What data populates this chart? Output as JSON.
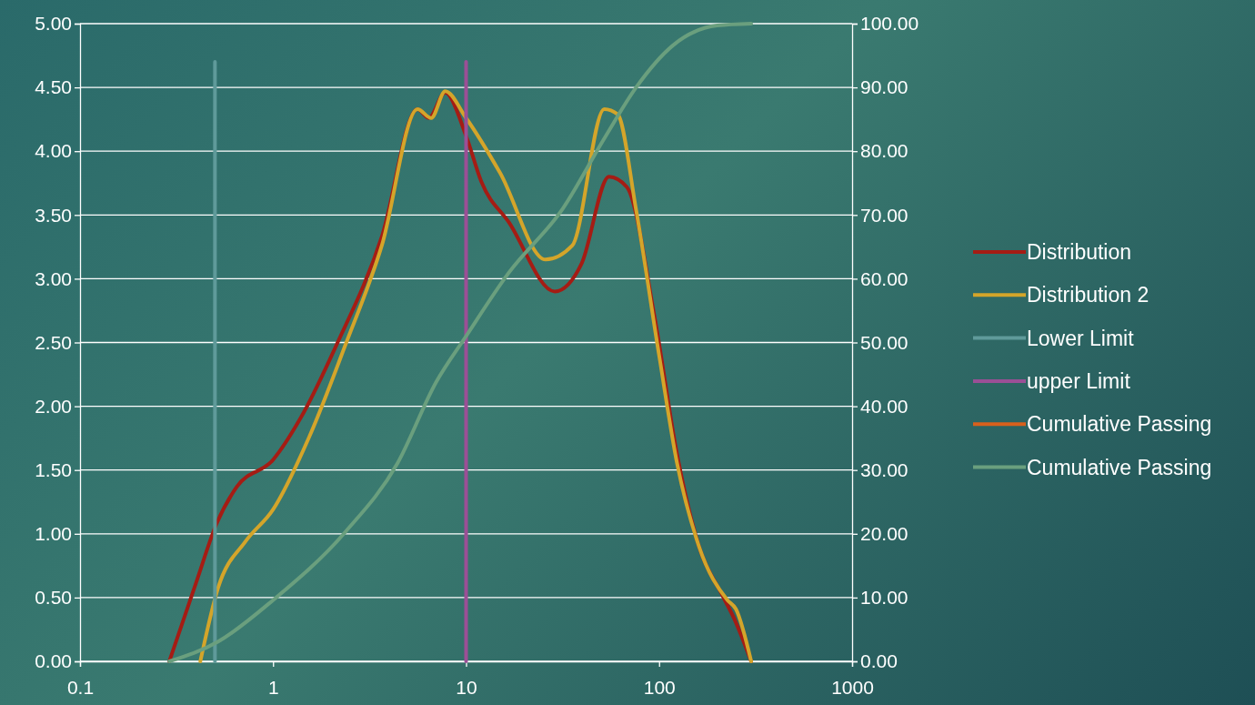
{
  "chart_data": {
    "type": "line",
    "log": "x",
    "grid": "y",
    "legend": "right",
    "marker": "none",
    "xlim": [
      0.1,
      1000
    ],
    "xticks": [
      0.1,
      1,
      10,
      100,
      1000
    ],
    "ylim": [
      0,
      5
    ],
    "yticks": [
      {
        "value": 0,
        "label": "0.00"
      },
      {
        "value": 0.5,
        "label": "0.50"
      },
      {
        "value": 1,
        "label": "1.00"
      },
      {
        "value": 1.5,
        "label": "1.50"
      },
      {
        "value": 2,
        "label": "2.00"
      },
      {
        "value": 2.5,
        "label": "2.50"
      },
      {
        "value": 3,
        "label": "3.00"
      },
      {
        "value": 3.5,
        "label": "3.50"
      },
      {
        "value": 4,
        "label": "4.00"
      },
      {
        "value": 4.5,
        "label": "4.50"
      },
      {
        "value": 5,
        "label": "5.00"
      }
    ],
    "y2lim": [
      0,
      100
    ],
    "y2ticks": [
      {
        "value": 0,
        "label": "0.00"
      },
      {
        "value": 10,
        "label": "10.00"
      },
      {
        "value": 20,
        "label": "20.00"
      },
      {
        "value": 30,
        "label": "30.00"
      },
      {
        "value": 40,
        "label": "40.00"
      },
      {
        "value": 50,
        "label": "50.00"
      },
      {
        "value": 60,
        "label": "60.00"
      },
      {
        "value": 70,
        "label": "70.00"
      },
      {
        "value": 80,
        "label": "80.00"
      },
      {
        "value": 90,
        "label": "90.00"
      },
      {
        "value": 100,
        "label": "100.00"
      }
    ],
    "series": [
      {
        "name": "Distribution",
        "color": "#a51c14",
        "x": [
          0.29,
          0.4,
          0.51,
          0.65,
          1.0,
          1.38,
          2.13,
          3.66,
          5.6,
          6.4,
          7.8,
          10,
          12,
          16.7,
          28.8,
          39.7,
          55,
          68,
          95,
          124,
          161,
          214,
          244,
          300
        ],
        "values": [
          0,
          0.62,
          1.08,
          1.37,
          1.58,
          1.9,
          2.48,
          3.33,
          4.33,
          4.26,
          4.46,
          4.12,
          3.76,
          3.44,
          2.9,
          3.12,
          3.8,
          3.72,
          2.69,
          1.62,
          0.9,
          0.51,
          0.34,
          0
        ]
      },
      {
        "name": "Distribution 2",
        "color": "#d4a52a",
        "x": [
          0.42,
          0.52,
          0.72,
          1.0,
          1.54,
          2.37,
          3.66,
          5.6,
          6.6,
          7.8,
          10,
          15,
          25.8,
          35.5,
          52,
          61,
          76,
          100,
          124,
          161,
          226,
          250,
          300
        ],
        "values": [
          0,
          0.58,
          0.94,
          1.19,
          1.76,
          2.48,
          3.26,
          4.33,
          4.26,
          4.47,
          4.26,
          3.83,
          3.15,
          3.26,
          4.33,
          4.29,
          3.54,
          2.4,
          1.55,
          0.9,
          0.48,
          0.41,
          0
        ]
      },
      {
        "name": "Lower Limit",
        "color": "#5f9a9a",
        "x": [
          0.5,
          0.5
        ],
        "values": [
          0,
          4.7
        ]
      },
      {
        "name": "upper Limit",
        "color": "#9b4f96",
        "x": [
          10,
          10
        ],
        "values": [
          0,
          4.7
        ]
      },
      {
        "name": "Cumulative Passing",
        "color": "#d9601c",
        "axis": "y2"
      },
      {
        "name": "Cumulative Passing",
        "color": "#6a9f7e",
        "axis": "y2",
        "x": [
          0.29,
          0.52,
          1.0,
          2.37,
          4.4,
          7.0,
          10,
          16.7,
          31.7,
          52,
          76,
          118,
          200,
          300
        ],
        "values": [
          0,
          3.1,
          9.6,
          20.3,
          31,
          43.8,
          51,
          61,
          71,
          82,
          90,
          96.6,
          99.7,
          100
        ]
      }
    ]
  }
}
